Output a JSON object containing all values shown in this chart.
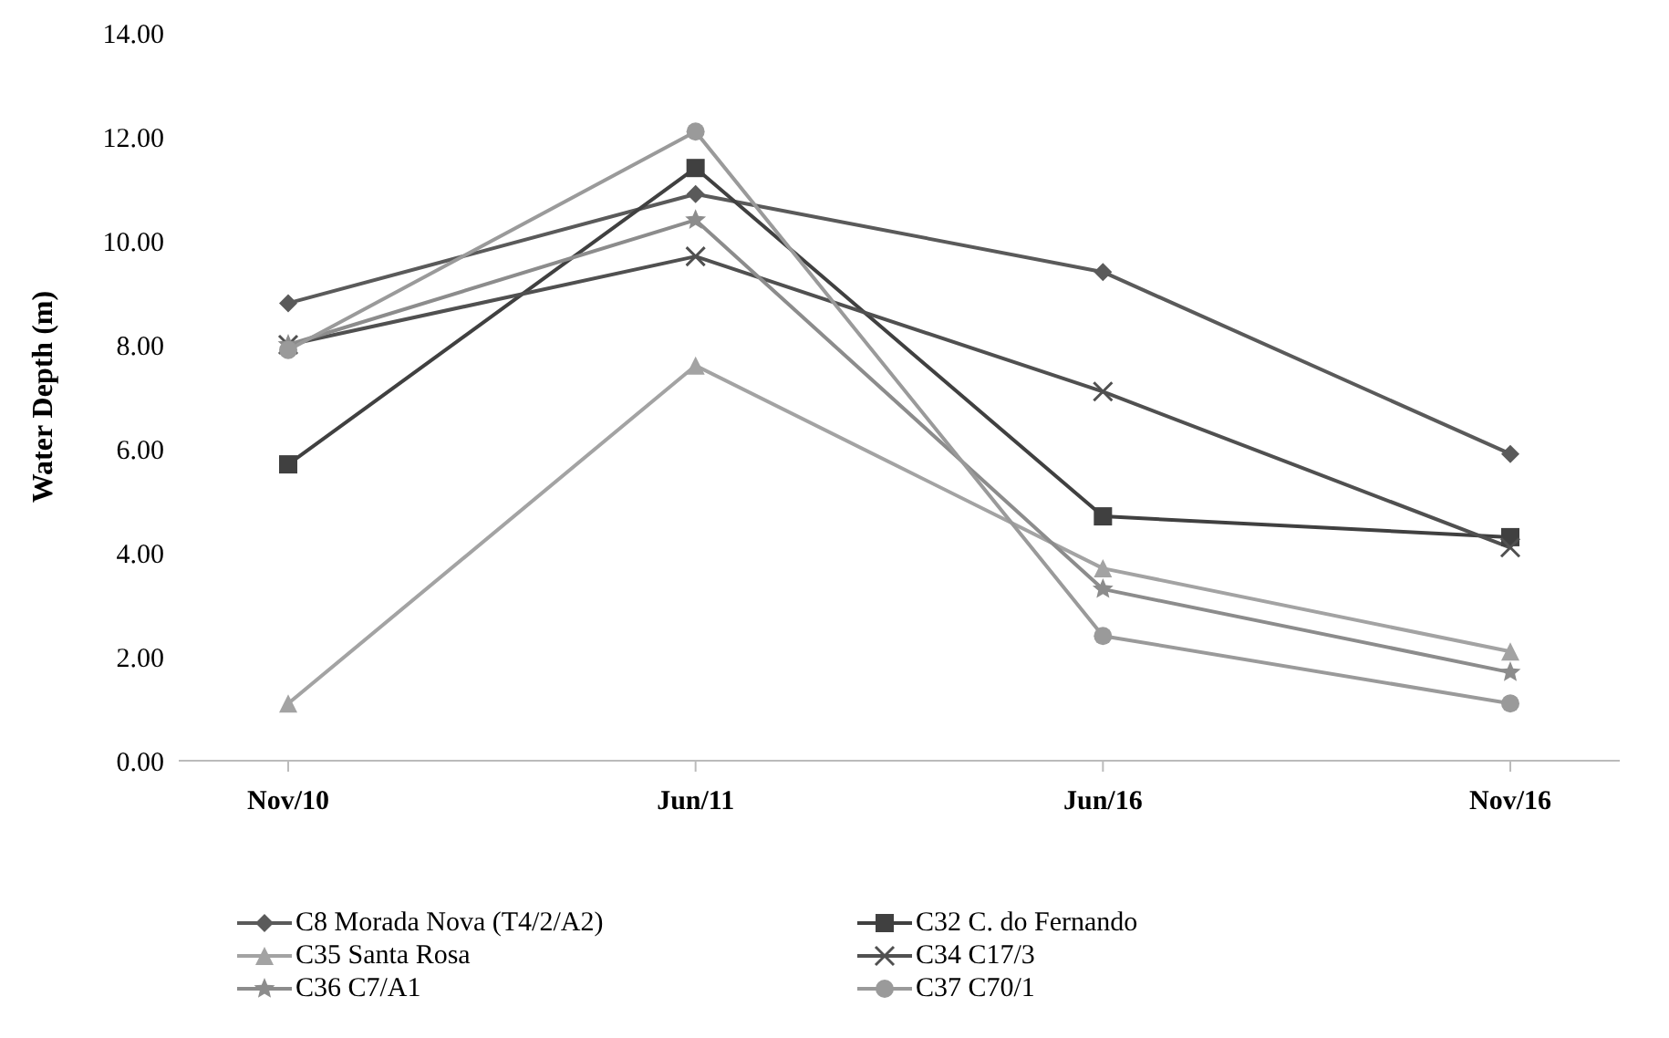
{
  "chart_data": {
    "type": "line",
    "ylabel": "Water Depth  (m)",
    "categories": [
      "Nov/10",
      "Jun/11",
      "Jun/16",
      "Nov/16"
    ],
    "series": [
      {
        "name": "C8 Morada Nova (T4/2/A2)",
        "color": "#5a5a5a",
        "marker": "diamond",
        "values": [
          8.8,
          10.9,
          9.4,
          5.9
        ]
      },
      {
        "name": "C32 C. do Fernando",
        "color": "#404040",
        "marker": "square",
        "values": [
          5.7,
          11.4,
          4.7,
          4.3
        ]
      },
      {
        "name": "C35 Santa Rosa",
        "color": "#a3a3a3",
        "marker": "triangle",
        "values": [
          1.1,
          7.6,
          3.7,
          2.1
        ]
      },
      {
        "name": "C34 C17/3",
        "color": "#505050",
        "marker": "cross",
        "values": [
          8.0,
          9.7,
          7.1,
          4.1
        ]
      },
      {
        "name": "C36 C7/A1",
        "color": "#8c8c8c",
        "marker": "star",
        "values": [
          8.0,
          10.4,
          3.3,
          1.7
        ]
      },
      {
        "name": "C37 C70/1",
        "color": "#9a9a9a",
        "marker": "circle",
        "values": [
          7.9,
          12.1,
          2.4,
          1.1
        ]
      }
    ],
    "ylim": [
      0,
      14
    ],
    "yticks": [
      {
        "value": 0,
        "label": "0.00"
      },
      {
        "value": 2,
        "label": "2.00"
      },
      {
        "value": 4,
        "label": "4.00"
      },
      {
        "value": 6,
        "label": "6.00"
      },
      {
        "value": 8,
        "label": "8.00"
      },
      {
        "value": 10,
        "label": "10.00"
      },
      {
        "value": 12,
        "label": "12.00"
      },
      {
        "value": 14,
        "label": "14.00"
      }
    ],
    "grid": false,
    "legend": "bottom",
    "line_style": "solid"
  }
}
